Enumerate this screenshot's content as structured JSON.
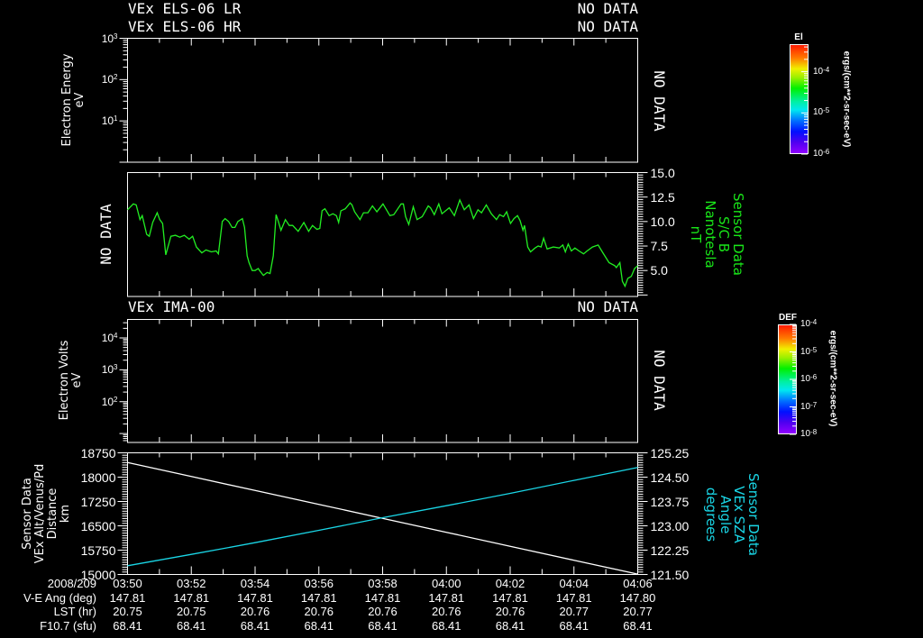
{
  "x_axis": {
    "date_label": "2008/209",
    "start": "03:50",
    "end": "04:06",
    "span_minutes": 16,
    "tick_labels": [
      "03:50",
      "03:52",
      "03:54",
      "03:56",
      "03:58",
      "04:00",
      "04:02",
      "04:04",
      "04:06"
    ]
  },
  "ephemeris": {
    "rows": [
      {
        "label": "V-E Ang (deg)",
        "values": [
          "147.81",
          "147.81",
          "147.81",
          "147.81",
          "147.81",
          "147.81",
          "147.81",
          "147.81",
          "147.80"
        ]
      },
      {
        "label": "LST (hr)",
        "values": [
          "20.75",
          "20.75",
          "20.76",
          "20.76",
          "20.76",
          "20.76",
          "20.76",
          "20.77",
          "20.77"
        ]
      },
      {
        "label": "F10.7 (sfu)",
        "values": [
          "68.41",
          "68.41",
          "68.41",
          "68.41",
          "68.41",
          "68.41",
          "68.41",
          "68.41",
          "68.41"
        ]
      }
    ]
  },
  "chart_data": [
    {
      "id": "els",
      "type": "heatmap",
      "title": "VEx ELS-06 LR",
      "title_status": "NO DATA",
      "subtitle": "VEx ELS-06 HR",
      "subtitle_status": "NO DATA",
      "status": "NO DATA",
      "ylabel": [
        "Electron Energy",
        "eV"
      ],
      "yscale": "log",
      "ylim_log10": [
        0,
        3
      ],
      "yticks": [
        {
          "base": "10",
          "exp": "3",
          "log10": 3
        },
        {
          "base": "10",
          "exp": "2",
          "log10": 2
        },
        {
          "base": "10",
          "exp": "1",
          "log10": 1
        }
      ],
      "colorbar": {
        "title": "El",
        "units": "ergs/(cm**2-sr-sec-eV)",
        "range_log10": [
          -6.0,
          -3.33
        ],
        "ticks": [
          {
            "base": "10",
            "exp": "-4",
            "log10": -4
          },
          {
            "base": "10",
            "exp": "-5",
            "log10": -5
          },
          {
            "base": "10",
            "exp": "-6",
            "log10": -6
          }
        ]
      },
      "values": []
    },
    {
      "id": "mag",
      "type": "line",
      "status_left": "NO DATA",
      "ylabel": [
        "Sensor Data",
        "S/C B",
        "Nanotesla",
        "nT"
      ],
      "label_color": "#19e619",
      "ylim": [
        2.35,
        15.0
      ],
      "grid": false,
      "yticks": [
        {
          "label": "15.0",
          "value": 15.0
        },
        {
          "label": "12.5",
          "value": 12.5
        },
        {
          "label": "10.0",
          "value": 10.0
        },
        {
          "label": "7.5",
          "value": 7.5
        },
        {
          "label": "5.0",
          "value": 5.0
        }
      ],
      "series": [
        {
          "name": "S/C B",
          "color": "#22ee22",
          "x_minutes_after_0350": [
            0,
            0.18,
            0.27,
            0.39,
            0.46,
            0.6,
            0.68,
            0.79,
            0.93,
            1.01,
            1.1,
            1.2,
            1.24,
            1.36,
            1.5,
            1.64,
            1.78,
            1.93,
            2.04,
            2.16,
            2.33,
            2.46,
            2.63,
            2.78,
            2.85,
            2.97,
            3.06,
            3.17,
            3.28,
            3.37,
            3.46,
            3.6,
            3.67,
            3.75,
            3.81,
            3.91,
            4.0,
            4.1,
            4.14,
            4.26,
            4.38,
            4.47,
            4.57,
            4.66,
            4.73,
            4.81,
            4.95,
            5.07,
            5.18,
            5.35,
            5.53,
            5.68,
            5.8,
            5.94,
            6.03,
            6.1,
            6.19,
            6.32,
            6.44,
            6.55,
            6.62,
            6.69,
            6.83,
            6.98,
            7.04,
            7.12,
            7.29,
            7.4,
            7.54,
            7.68,
            7.82,
            8.01,
            8.23,
            8.35,
            8.58,
            8.65,
            8.72,
            8.82,
            8.96,
            9.08,
            9.24,
            9.43,
            9.5,
            9.62,
            9.76,
            9.86,
            10.09,
            10.25,
            10.42,
            10.56,
            10.71,
            10.85,
            10.99,
            11.1,
            11.25,
            11.41,
            11.57,
            11.67,
            11.79,
            11.89,
            12.01,
            12.12,
            12.23,
            12.31,
            12.4,
            12.45,
            12.55,
            12.64,
            12.78,
            12.88,
            12.97,
            13.05,
            13.16,
            13.35,
            13.54,
            13.65,
            13.73,
            13.82,
            13.92,
            14.03,
            14.16,
            14.3,
            14.41,
            14.58,
            14.76,
            14.91,
            15.1,
            15.28,
            15.33,
            15.44,
            15.52,
            15.6,
            15.69,
            15.8,
            15.9,
            16.0
          ],
          "y": [
            11.2,
            11.8,
            11.7,
            10.2,
            10.6,
            8.7,
            8.5,
            9.9,
            10.9,
            10.2,
            9.8,
            6.6,
            7.1,
            8.5,
            8.6,
            8.4,
            8.6,
            8.2,
            8.5,
            7.4,
            6.8,
            7.1,
            6.9,
            7.0,
            6.7,
            10.0,
            10.3,
            10.0,
            9.4,
            9.4,
            10.0,
            10.3,
            9.4,
            6.5,
            5.8,
            5.0,
            5.0,
            5.2,
            5.0,
            4.5,
            4.8,
            4.7,
            6.5,
            10.7,
            10.0,
            9.1,
            10.2,
            9.6,
            9.6,
            9.0,
            9.9,
            9.0,
            9.6,
            9.2,
            9.3,
            11.1,
            11.3,
            10.6,
            10.8,
            10.6,
            9.9,
            11.1,
            11.3,
            11.9,
            11.7,
            11.0,
            10.2,
            10.9,
            10.9,
            11.6,
            11.0,
            11.8,
            10.6,
            10.7,
            11.8,
            11.8,
            10.5,
            9.7,
            11.5,
            10.2,
            10.5,
            11.6,
            11.4,
            10.7,
            11.8,
            10.8,
            11.4,
            10.6,
            12.2,
            11.2,
            11.7,
            10.3,
            11.2,
            10.9,
            11.7,
            10.8,
            10.2,
            10.7,
            10.5,
            11.0,
            9.8,
            10.3,
            10.6,
            10.1,
            9.1,
            9.6,
            7.4,
            6.9,
            7.3,
            7.5,
            7.4,
            8.3,
            7.2,
            7.4,
            7.3,
            7.6,
            6.9,
            7.7,
            7.0,
            7.3,
            7.0,
            6.7,
            7.0,
            7.4,
            7.6,
            6.8,
            5.8,
            5.5,
            5.3,
            5.8,
            3.9,
            3.4,
            4.2,
            4.4,
            5.2,
            5.5
          ]
        }
      ]
    },
    {
      "id": "ima",
      "type": "heatmap",
      "title": "VEx IMA-00",
      "title_status": "NO DATA",
      "status": "NO DATA",
      "ylabel": [
        "Electron Volts",
        "eV"
      ],
      "yscale": "log",
      "ylim_log10": [
        0.72,
        4.58
      ],
      "yticks": [
        {
          "base": "10",
          "exp": "4",
          "log10": 4
        },
        {
          "base": "10",
          "exp": "3",
          "log10": 3
        },
        {
          "base": "10",
          "exp": "2",
          "log10": 2
        }
      ],
      "colorbar": {
        "title": "DEF",
        "units": "ergs/(cm**2-sr-sec-eV)",
        "range_log10": [
          -8.0,
          -4.0
        ],
        "ticks": [
          {
            "base": "10",
            "exp": "-4",
            "log10": -4
          },
          {
            "base": "10",
            "exp": "-5",
            "log10": -5
          },
          {
            "base": "10",
            "exp": "-6",
            "log10": -6
          },
          {
            "base": "10",
            "exp": "-7",
            "log10": -7
          },
          {
            "base": "10",
            "exp": "-8",
            "log10": -8
          }
        ]
      },
      "values": []
    },
    {
      "id": "orbit",
      "type": "line",
      "ylabel_left": [
        "Sensor Data",
        "VEx Alt/Venus/Pd",
        "Distance",
        "km"
      ],
      "ylabel_right": [
        "Sensor Data",
        "VEx SZA",
        "Angle",
        "degrees"
      ],
      "right_label_color": "#1ad6e6",
      "ylim_left": [
        15000,
        18750
      ],
      "ylim_right": [
        121.5,
        125.25
      ],
      "yticks_left": [
        {
          "label": "18750",
          "value": 18750
        },
        {
          "label": "18000",
          "value": 18000
        },
        {
          "label": "17250",
          "value": 17250
        },
        {
          "label": "16500",
          "value": 16500
        },
        {
          "label": "15750",
          "value": 15750
        },
        {
          "label": "15000",
          "value": 15000
        }
      ],
      "yticks_right": [
        {
          "label": "125.25",
          "value": 125.25
        },
        {
          "label": "124.50",
          "value": 124.5
        },
        {
          "label": "123.75",
          "value": 123.75
        },
        {
          "label": "123.00",
          "value": 123.0
        },
        {
          "label": "122.25",
          "value": 122.25
        },
        {
          "label": "121.50",
          "value": 121.5
        }
      ],
      "series": [
        {
          "name": "VEx Alt/Venus/Pd Distance (km)",
          "axis": "left",
          "color": "#ffffff",
          "x_minutes_after_0350": [
            0,
            2,
            4,
            6,
            8,
            10,
            12,
            14,
            16
          ],
          "y": [
            18450,
            18020,
            17590,
            17160,
            16730,
            16300,
            15870,
            15440,
            15010
          ]
        },
        {
          "name": "VEx SZA Angle (degrees)",
          "axis": "right",
          "color": "#1ad6e6",
          "x_minutes_after_0350": [
            0,
            2,
            4,
            6,
            8,
            10,
            12,
            14,
            16
          ],
          "y": [
            121.77,
            122.12,
            122.48,
            122.86,
            123.25,
            123.62,
            124.0,
            124.4,
            124.8
          ]
        }
      ]
    }
  ]
}
